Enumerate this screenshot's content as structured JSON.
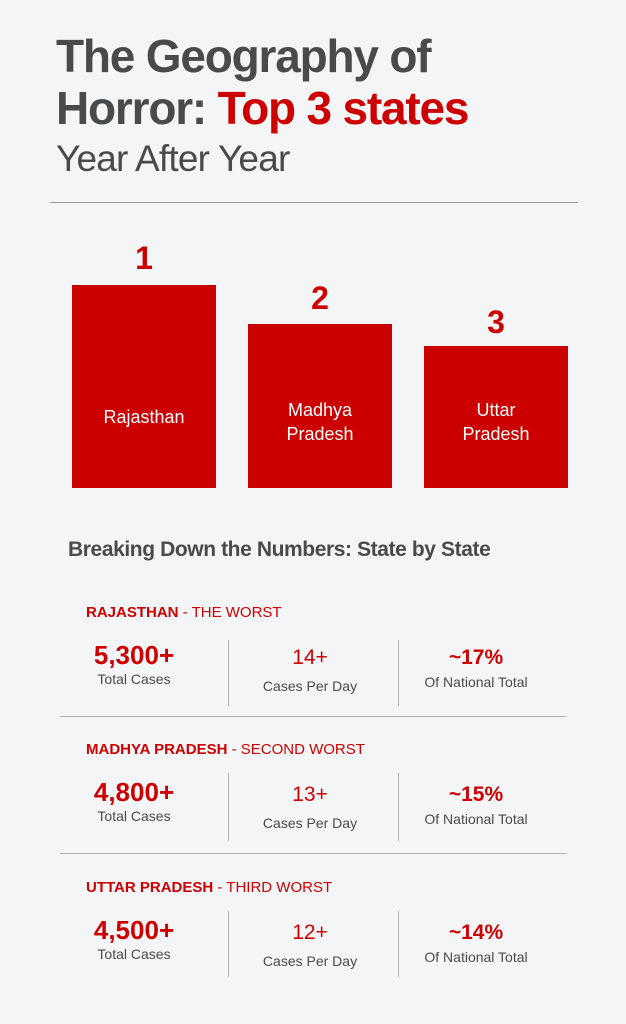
{
  "header": {
    "title_line1": "The Geography of",
    "title_line2_prefix": "Horror: ",
    "title_line2_accent": "Top 3 states",
    "subtitle": "Year After Year"
  },
  "podium": [
    {
      "rank": "1",
      "name_line1": "Rajasthan",
      "name_line2": ""
    },
    {
      "rank": "2",
      "name_line1": "Madhya",
      "name_line2": "Pradesh"
    },
    {
      "rank": "3",
      "name_line1": "Uttar",
      "name_line2": "Pradesh"
    }
  ],
  "breakdown": {
    "heading": "Breaking Down the Numbers: State by State",
    "states": [
      {
        "name": "RAJASTHAN",
        "tag": " - THE WORST",
        "total": "5,300+",
        "total_label": "Total Cases",
        "per_day": "14+",
        "per_day_label": "Cases Per Day",
        "share": "~17%",
        "share_label": "Of National Total"
      },
      {
        "name": "MADHYA PRADESH",
        "tag": " - SECOND WORST",
        "total": "4,800+",
        "total_label": "Total Cases",
        "per_day": "13+",
        "per_day_label": "Cases Per Day",
        "share": "~15%",
        "share_label": "Of National Total"
      },
      {
        "name": "UTTAR PRADESH",
        "tag": " - THIRD WORST",
        "total": "4,500+",
        "total_label": "Total Cases",
        "per_day": "12+",
        "per_day_label": "Cases Per Day",
        "share": "~14%",
        "share_label": "Of National Total"
      }
    ]
  },
  "colors": {
    "accent": "#cc0000",
    "text": "#4a4a4a",
    "background": "#f4f5f7"
  }
}
